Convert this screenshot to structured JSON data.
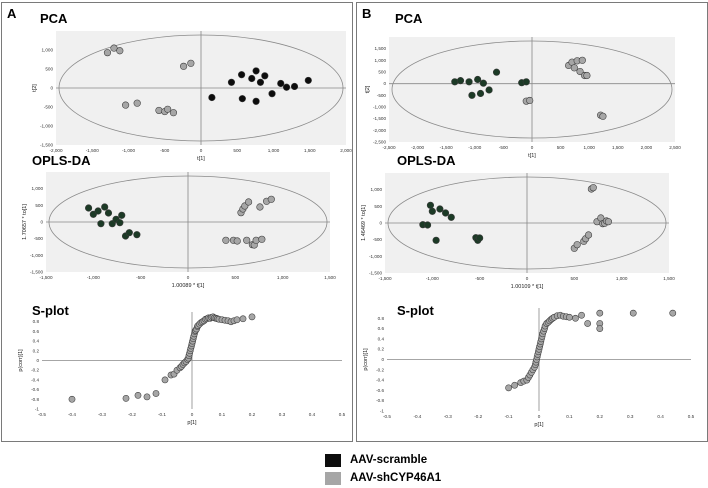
{
  "colors": {
    "scramble": "#0d0d0d",
    "scramble_dark_green": "#1c3a26",
    "shcyp": "#a6a6a6",
    "plot_bg": "#f0f0f0",
    "axis": "#888888",
    "frame": "#7a7a7a"
  },
  "panels": [
    {
      "letter": "A"
    },
    {
      "letter": "B"
    }
  ],
  "legend": {
    "items": [
      {
        "label": "AAV-scramble",
        "color": "#0d0d0d"
      },
      {
        "label": "AAV-shCYP46A1",
        "color": "#a6a6a6"
      }
    ]
  },
  "chart_data": [
    {
      "type": "scatter",
      "panel": "A",
      "title": "PCA",
      "xlabel": "t[1]",
      "ylabel": "t[2]",
      "xlim": [
        -2000,
        2000
      ],
      "ylim": [
        -1500,
        1500
      ],
      "xticks": [
        "-2,000",
        "-1,500",
        "-1,000",
        "-500",
        "0",
        "500",
        "1,000",
        "1,500",
        "2,000"
      ],
      "yticks": [
        "-1,500",
        "-1,000",
        "-500",
        "0",
        "500",
        "1,000"
      ],
      "series": [
        {
          "name": "AAV-scramble",
          "color": "#0d0d0d",
          "x": [
            420,
            560,
            700,
            760,
            820,
            880,
            980,
            1100,
            1180,
            1290,
            1480,
            150,
            570,
            760
          ],
          "y": [
            150,
            350,
            250,
            450,
            150,
            320,
            -150,
            120,
            20,
            40,
            200,
            -250,
            -280,
            -350
          ]
        },
        {
          "name": "AAV-shCYP46A1",
          "color": "#a6a6a6",
          "x": [
            -1290,
            -1200,
            -1120,
            -1040,
            -880,
            -580,
            -500,
            -460,
            -380,
            -240,
            -140
          ],
          "y": [
            930,
            1050,
            980,
            -450,
            -400,
            -590,
            -620,
            -560,
            -650,
            570,
            650
          ]
        }
      ]
    },
    {
      "type": "scatter",
      "panel": "A",
      "title": "OPLS-DA",
      "xlabel": "1.00089 * t[1]",
      "ylabel": "1.70657 * to[1]",
      "xlim": [
        -1500,
        1500
      ],
      "ylim": [
        -1500,
        1500
      ],
      "xticks": [
        "-1,500",
        "-1,000",
        "-500",
        "0",
        "500",
        "1,000",
        "1,500"
      ],
      "yticks": [
        "-1,500",
        "-1,000",
        "-500",
        "0",
        "500",
        "1,000"
      ],
      "series": [
        {
          "name": "AAV-scramble",
          "color": "#1c3a26",
          "x": [
            -1050,
            -1000,
            -950,
            -920,
            -880,
            -840,
            -800,
            -760,
            -720,
            -700,
            -660,
            -620,
            -540
          ],
          "y": [
            420,
            230,
            330,
            -50,
            450,
            270,
            -50,
            80,
            -20,
            200,
            -420,
            -320,
            -380
          ]
        },
        {
          "name": "AAV-shCYP46A1",
          "color": "#a6a6a6",
          "x": [
            400,
            480,
            520,
            560,
            580,
            600,
            620,
            640,
            680,
            700,
            720,
            760,
            780,
            830,
            880
          ],
          "y": [
            -550,
            -550,
            -570,
            280,
            390,
            480,
            -550,
            600,
            -680,
            -690,
            -550,
            450,
            -520,
            620,
            680
          ]
        }
      ]
    },
    {
      "type": "scatter",
      "panel": "A",
      "title": "S-plot",
      "xlabel": "p[1]",
      "ylabel": "p(corr)[1]",
      "xlim": [
        -0.5,
        0.5
      ],
      "ylim": [
        -1,
        1
      ],
      "xticks": [
        "-0.5",
        "-0.4",
        "-0.3",
        "-0.2",
        "-0.1",
        "0",
        "0.1",
        "0.2",
        "0.3",
        "0.4",
        "0.5"
      ],
      "yticks": [
        "-1",
        "-0.8",
        "-0.6",
        "-0.4",
        "-0.2",
        "0",
        "0.2",
        "0.4",
        "0.6",
        "0.8"
      ],
      "series": [
        {
          "name": "variables",
          "color": "#a6a6a6",
          "x": [
            -0.4,
            -0.22,
            -0.18,
            -0.15,
            -0.12,
            -0.09,
            -0.07,
            -0.06,
            -0.05,
            -0.04,
            -0.035,
            -0.03,
            -0.025,
            -0.02,
            -0.015,
            -0.012,
            -0.01,
            -0.008,
            -0.006,
            -0.004,
            -0.002,
            0,
            0.002,
            0.004,
            0.006,
            0.008,
            0.01,
            0.012,
            0.015,
            0.018,
            0.02,
            0.025,
            0.03,
            0.035,
            0.04,
            0.045,
            0.05,
            0.055,
            0.06,
            0.065,
            0.07,
            0.075,
            0.08,
            0.085,
            0.09,
            0.1,
            0.11,
            0.12,
            0.13,
            0.14,
            0.15,
            0.17,
            0.2
          ],
          "y": [
            -0.8,
            -0.78,
            -0.72,
            -0.75,
            -0.68,
            -0.4,
            -0.3,
            -0.28,
            -0.2,
            -0.15,
            -0.12,
            -0.08,
            -0.05,
            -0.02,
            0.02,
            0.05,
            0.1,
            0.15,
            0.2,
            0.25,
            0.3,
            0.35,
            0.4,
            0.45,
            0.5,
            0.55,
            0.6,
            0.62,
            0.65,
            0.7,
            0.72,
            0.75,
            0.78,
            0.8,
            0.82,
            0.85,
            0.86,
            0.88,
            0.87,
            0.89,
            0.9,
            0.88,
            0.87,
            0.86,
            0.85,
            0.84,
            0.83,
            0.82,
            0.8,
            0.82,
            0.84,
            0.86,
            0.9
          ]
        }
      ]
    },
    {
      "type": "scatter",
      "panel": "B",
      "title": "PCA",
      "xlabel": "t[1]",
      "ylabel": "t[2]",
      "xlim": [
        -2500,
        2500
      ],
      "ylim": [
        -2500,
        2000
      ],
      "xticks": [
        "-2,500",
        "-2,000",
        "-1,500",
        "-1,000",
        "-500",
        "0",
        "500",
        "1,000",
        "1,500",
        "2,000",
        "2,500"
      ],
      "yticks": [
        "-2,500",
        "-2,000",
        "-1,500",
        "-1,000",
        "-500",
        "0",
        "500",
        "1,000",
        "1,500"
      ],
      "series": [
        {
          "name": "AAV-scramble",
          "color": "#1c3a26",
          "x": [
            -1350,
            -1250,
            -1100,
            -950,
            -850,
            -750,
            -620,
            -180,
            -100,
            -1050,
            -900
          ],
          "y": [
            80,
            130,
            80,
            180,
            20,
            -270,
            490,
            40,
            80,
            -500,
            -420
          ]
        },
        {
          "name": "AAV-shCYP46A1",
          "color": "#a6a6a6",
          "x": [
            -100,
            -40,
            640,
            700,
            740,
            790,
            840,
            880,
            920,
            960,
            1200,
            1240
          ],
          "y": [
            -750,
            -720,
            780,
            920,
            680,
            980,
            520,
            1000,
            350,
            350,
            -1350,
            -1400
          ]
        }
      ]
    },
    {
      "type": "scatter",
      "panel": "B",
      "title": "OPLS-DA",
      "xlabel": "1.00109 * t[1]",
      "ylabel": "1.46469 * to[1]",
      "xlim": [
        -1500,
        1500
      ],
      "ylim": [
        -1500,
        1500
      ],
      "xticks": [
        "-1,500",
        "-1,000",
        "-500",
        "0",
        "500",
        "1,000",
        "1,500"
      ],
      "yticks": [
        "-1,500",
        "-1,000",
        "-500",
        "0",
        "500",
        "1,000"
      ],
      "series": [
        {
          "name": "AAV-scramble",
          "color": "#1c3a26",
          "x": [
            -1100,
            -1050,
            -1020,
            -1000,
            -960,
            -920,
            -860,
            -800,
            -540,
            -520,
            -500
          ],
          "y": [
            -50,
            -60,
            530,
            350,
            -520,
            420,
            300,
            170,
            -440,
            -520,
            -450
          ]
        },
        {
          "name": "AAV-shCYP46A1",
          "color": "#a6a6a6",
          "x": [
            500,
            530,
            600,
            620,
            650,
            680,
            700,
            740,
            780,
            800,
            820,
            840,
            860
          ],
          "y": [
            -760,
            -650,
            -550,
            -470,
            -360,
            1020,
            1060,
            40,
            150,
            -20,
            -10,
            60,
            40
          ]
        }
      ]
    },
    {
      "type": "scatter",
      "panel": "B",
      "title": "S-plot",
      "xlabel": "p[1]",
      "ylabel": "p(corr)[1]",
      "xlim": [
        -0.5,
        0.5
      ],
      "ylim": [
        -1,
        1
      ],
      "xticks": [
        "-0.5",
        "-0.4",
        "-0.3",
        "-0.2",
        "-0.1",
        "0",
        "0.1",
        "0.2",
        "0.3",
        "0.4",
        "0.5"
      ],
      "yticks": [
        "-1",
        "-0.8",
        "-0.6",
        "-0.4",
        "-0.2",
        "0",
        "0.2",
        "0.4",
        "0.6",
        "0.8"
      ],
      "series": [
        {
          "name": "variables",
          "color": "#a6a6a6",
          "x": [
            -0.1,
            -0.08,
            -0.06,
            -0.05,
            -0.04,
            -0.035,
            -0.03,
            -0.025,
            -0.02,
            -0.015,
            -0.012,
            -0.01,
            -0.008,
            -0.006,
            -0.004,
            -0.002,
            0,
            0.002,
            0.004,
            0.006,
            0.008,
            0.01,
            0.012,
            0.015,
            0.018,
            0.02,
            0.025,
            0.03,
            0.035,
            0.04,
            0.045,
            0.05,
            0.06,
            0.07,
            0.08,
            0.09,
            0.1,
            0.12,
            0.14,
            0.16,
            0.2,
            0.2,
            0.2,
            0.31,
            0.44
          ],
          "y": [
            -0.55,
            -0.5,
            -0.45,
            -0.42,
            -0.4,
            -0.35,
            -0.3,
            -0.25,
            -0.2,
            -0.15,
            -0.1,
            -0.05,
            0,
            0.05,
            0.1,
            0.15,
            0.2,
            0.25,
            0.3,
            0.35,
            0.4,
            0.45,
            0.5,
            0.55,
            0.6,
            0.65,
            0.7,
            0.72,
            0.75,
            0.78,
            0.8,
            0.82,
            0.85,
            0.86,
            0.84,
            0.83,
            0.82,
            0.8,
            0.86,
            0.7,
            0.9,
            0.7,
            0.6,
            0.9,
            0.9
          ]
        }
      ]
    }
  ]
}
